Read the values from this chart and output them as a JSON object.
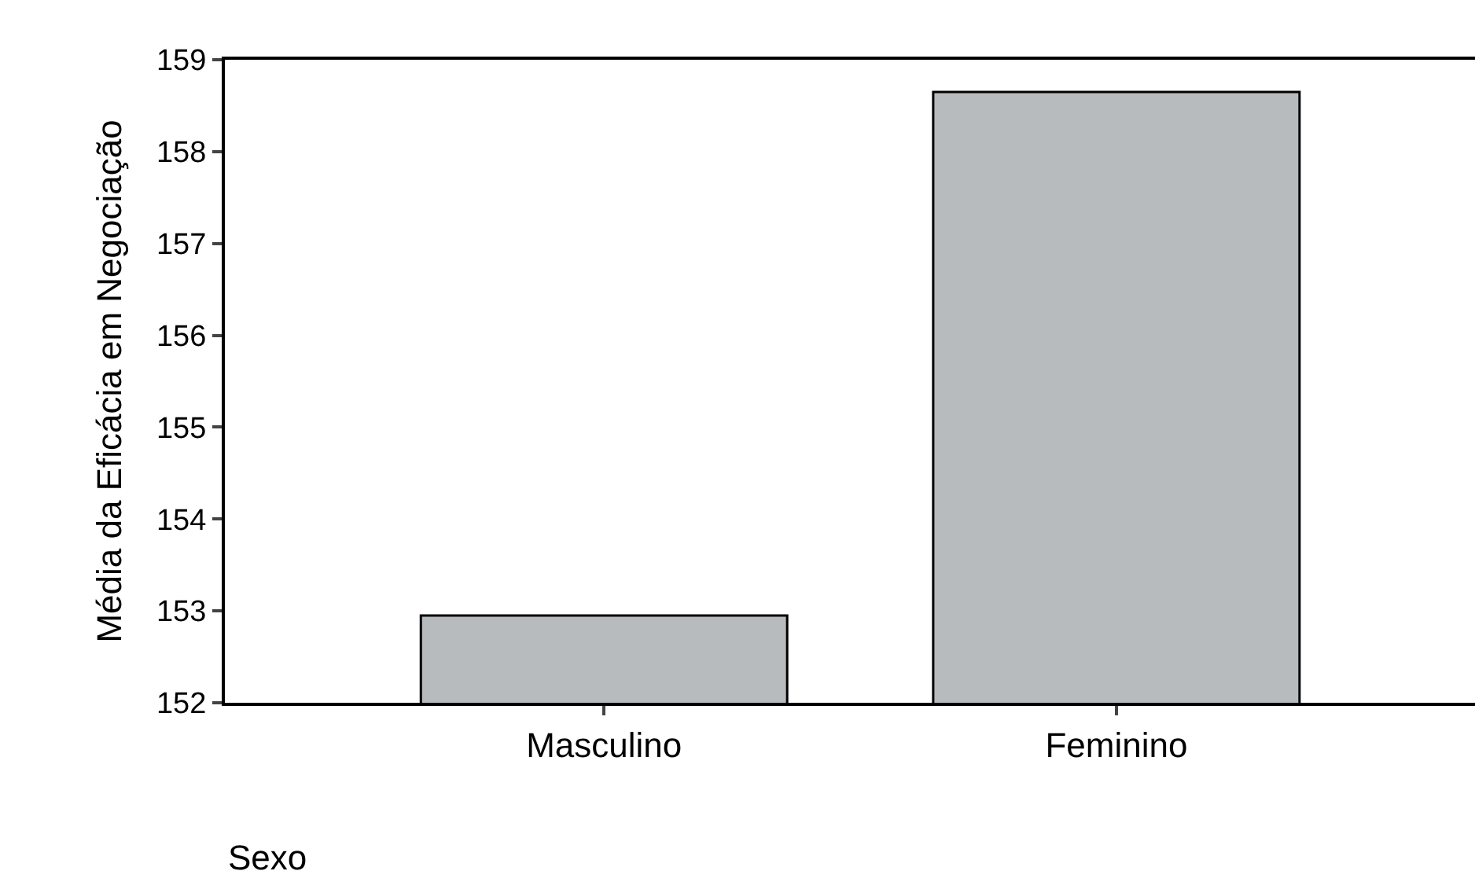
{
  "chart_data": {
    "type": "bar",
    "xlabel": "Sexo",
    "ylabel": "Média da Eficácia em Negociação",
    "categories": [
      "Masculino",
      "Feminino"
    ],
    "values": [
      152.95,
      158.65
    ],
    "color": "#b8bbbe",
    "ylim": [
      152,
      159
    ],
    "yticks": [
      152,
      153,
      154,
      155,
      156,
      157,
      158,
      159
    ],
    "grid": false,
    "legend": false
  }
}
